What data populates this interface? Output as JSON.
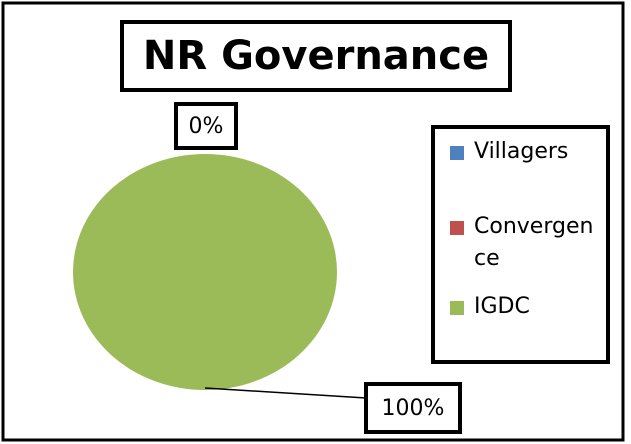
{
  "chart_data": {
    "type": "pie",
    "title": "NR Governance",
    "categories": [
      "Villagers",
      "Convergence",
      "IGDC"
    ],
    "values": [
      0,
      0,
      100
    ],
    "value_labels": [
      "0%",
      "0%",
      "100%"
    ],
    "colors": [
      "#4f81bd",
      "#c0504d",
      "#9bbb59"
    ],
    "legend": "right"
  }
}
